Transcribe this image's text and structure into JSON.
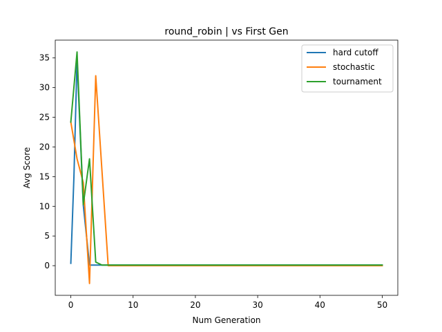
{
  "chart_data": {
    "type": "line",
    "title": "round_robin | vs First Gen",
    "xlabel": "Num Generation",
    "ylabel": "Avg Score",
    "xlim": [
      -2.5,
      52.5
    ],
    "ylim": [
      -5,
      38
    ],
    "xticks": [
      0,
      10,
      20,
      30,
      40,
      50
    ],
    "yticks": [
      0,
      5,
      10,
      15,
      20,
      25,
      30,
      35
    ],
    "grid": false,
    "legend_position": "top-right",
    "series": [
      {
        "name": "hard cutoff",
        "color": "#1f77b4",
        "x": [
          0,
          0.5,
          1,
          2,
          3,
          4,
          5,
          50
        ],
        "y": [
          0.4,
          15,
          34.7,
          10.2,
          0.1,
          0.1,
          0.1,
          0.1
        ]
      },
      {
        "name": "stochastic",
        "color": "#ff7f0e",
        "x": [
          0,
          1,
          2,
          3,
          4,
          5,
          6,
          50
        ],
        "y": [
          24.2,
          18,
          14,
          -3,
          32,
          16,
          0,
          0
        ]
      },
      {
        "name": "tournament",
        "color": "#2ca02c",
        "x": [
          0,
          1,
          2,
          3,
          4,
          5,
          50
        ],
        "y": [
          24.2,
          36,
          10.3,
          18,
          0.6,
          0.1,
          0.1
        ]
      }
    ]
  }
}
